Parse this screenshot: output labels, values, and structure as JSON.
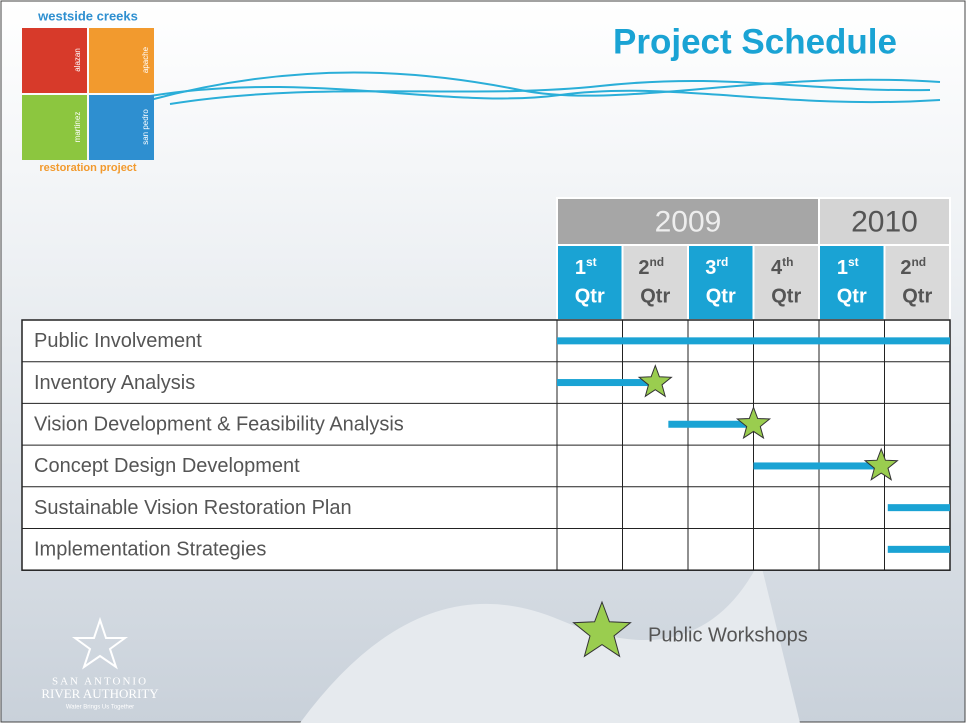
{
  "header": {
    "title": "Project Schedule",
    "logo": {
      "top": "westside creeks",
      "words": [
        "alazan",
        "apache",
        "martinez",
        "san pedro"
      ],
      "bottom": "restoration project"
    }
  },
  "schedule": {
    "years": [
      {
        "label": "2009",
        "quarters": 4
      },
      {
        "label": "2010",
        "quarters": 2
      }
    ],
    "quarters": [
      {
        "num": "1",
        "suffix": "st",
        "label": "Qtr",
        "highlight": true
      },
      {
        "num": "2",
        "suffix": "nd",
        "label": "Qtr",
        "highlight": false
      },
      {
        "num": "3",
        "suffix": "rd",
        "label": "Qtr",
        "highlight": true
      },
      {
        "num": "4",
        "suffix": "th",
        "label": "Qtr",
        "highlight": false
      },
      {
        "num": "1",
        "suffix": "st",
        "label": "Qtr",
        "highlight": true
      },
      {
        "num": "2",
        "suffix": "nd",
        "label": "Qtr",
        "highlight": false
      }
    ],
    "tasks": [
      {
        "name": "Public Involvement",
        "start": 0,
        "end": 6,
        "milestone": null
      },
      {
        "name": "Inventory Analysis",
        "start": 0,
        "end": 1.5,
        "milestone": 1.5
      },
      {
        "name": "Vision Development & Feasibility Analysis",
        "start": 1.7,
        "end": 3,
        "milestone": 3
      },
      {
        "name": "Concept Design Development",
        "start": 3,
        "end": 4.95,
        "milestone": 4.95
      },
      {
        "name": "Sustainable Vision Restoration Plan",
        "start": 5.05,
        "end": 6,
        "milestone": null
      },
      {
        "name": "Implementation Strategies",
        "start": 5.05,
        "end": 6,
        "milestone": null
      }
    ],
    "bar_color": "#1aa3d4",
    "star_color": "#9acd4f"
  },
  "legend": {
    "label": "Public Workshops"
  },
  "footer": {
    "org_line1": "SAN ANTONIO",
    "org_line2": "RIVER AUTHORITY",
    "tagline": "Water Brings Us Together"
  }
}
